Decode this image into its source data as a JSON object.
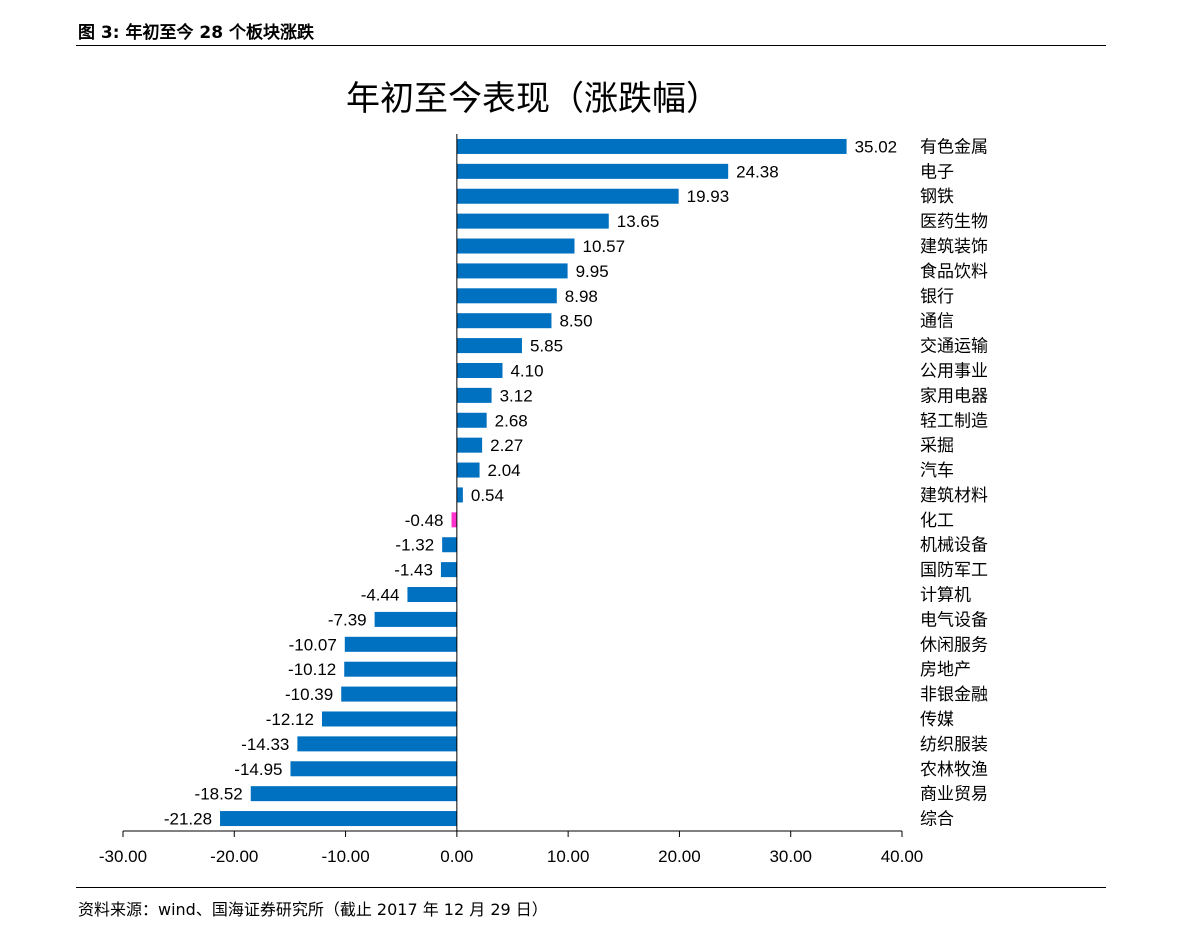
{
  "figure_header": "图 3:  年初至今 28 个板块涨跌",
  "source_note": "资料来源：wind、国海证券研究所（截止 2017 年 12 月 29 日）",
  "colors": {
    "positive": "#0070C0",
    "negative_small": "#FF33CC",
    "axis": "#000000"
  },
  "chart_data": {
    "type": "bar",
    "orientation": "horizontal",
    "title": "年初至今表现（涨跌幅）",
    "xlabel": "",
    "ylabel": "",
    "xlim": [
      -30,
      40
    ],
    "xticks": [
      -30,
      -20,
      -10,
      0,
      10,
      20,
      30,
      40
    ],
    "xtick_labels": [
      "-30.00",
      "-20.00",
      "-10.00",
      "0.00",
      "10.00",
      "20.00",
      "30.00",
      "40.00"
    ],
    "grid": false,
    "legend": "none",
    "categories": [
      "有色金属",
      "电子",
      "钢铁",
      "医药生物",
      "建筑装饰",
      "食品饮料",
      "银行",
      "通信",
      "交通运输",
      "公用事业",
      "家用电器",
      "轻工制造",
      "采掘",
      "汽车",
      "建筑材料",
      "化工",
      "机械设备",
      "国防军工",
      "计算机",
      "电气设备",
      "休闲服务",
      "房地产",
      "非银金融",
      "传媒",
      "纺织服装",
      "农林牧渔",
      "商业贸易",
      "综合"
    ],
    "values": [
      35.02,
      24.38,
      19.93,
      13.65,
      10.57,
      9.95,
      8.98,
      8.5,
      5.85,
      4.1,
      3.12,
      2.68,
      2.27,
      2.04,
      0.54,
      -0.48,
      -1.32,
      -1.43,
      -4.44,
      -7.39,
      -10.07,
      -10.12,
      -10.39,
      -12.12,
      -14.33,
      -14.95,
      -18.52,
      -21.28
    ],
    "value_labels": [
      "35.02",
      "24.38",
      "19.93",
      "13.65",
      "10.57",
      "9.95",
      "8.98",
      "8.50",
      "5.85",
      "4.10",
      "3.12",
      "2.68",
      "2.27",
      "2.04",
      "0.54",
      "-0.48",
      "-1.32",
      "-1.43",
      "-4.44",
      "-7.39",
      "-10.07",
      "-10.12",
      "-10.39",
      "-12.12",
      "-14.33",
      "-14.95",
      "-18.52",
      "-21.28"
    ],
    "bar_colors": [
      "#0070C0",
      "#0070C0",
      "#0070C0",
      "#0070C0",
      "#0070C0",
      "#0070C0",
      "#0070C0",
      "#0070C0",
      "#0070C0",
      "#0070C0",
      "#0070C0",
      "#0070C0",
      "#0070C0",
      "#0070C0",
      "#0070C0",
      "#FF33CC",
      "#0070C0",
      "#0070C0",
      "#0070C0",
      "#0070C0",
      "#0070C0",
      "#0070C0",
      "#0070C0",
      "#0070C0",
      "#0070C0",
      "#0070C0",
      "#0070C0",
      "#0070C0"
    ]
  }
}
